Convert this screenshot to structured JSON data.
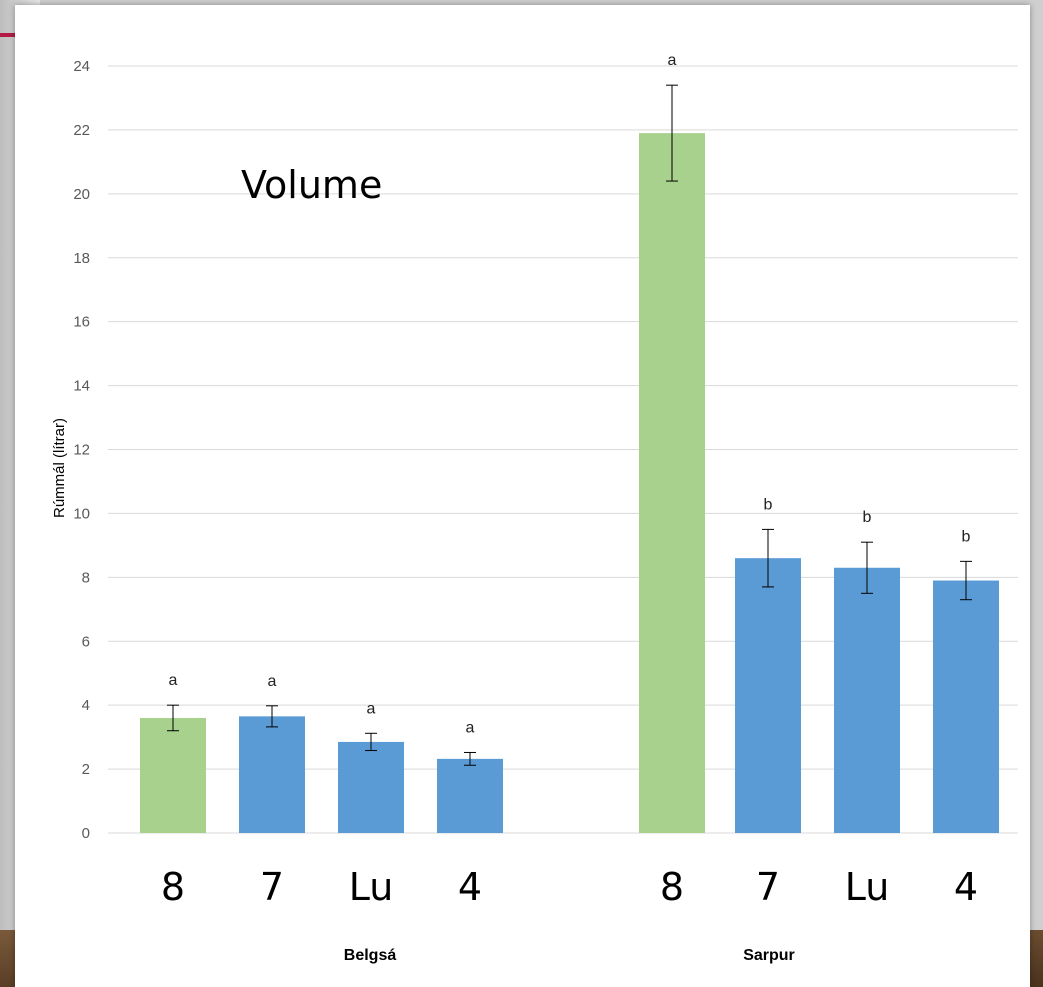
{
  "chart_data": {
    "type": "bar",
    "title": "Volume",
    "ylabel": "Rúmmál (lítrar)",
    "xlabel": "",
    "ylim": [
      0,
      24
    ],
    "yticks": [
      0,
      2,
      4,
      6,
      8,
      10,
      12,
      14,
      16,
      18,
      20,
      22,
      24
    ],
    "grid": true,
    "colors": {
      "green": "#a9d18e",
      "blue": "#5b9bd5",
      "grid": "#d9d9d9"
    },
    "groups": [
      {
        "name": "Belgsá",
        "bars": [
          {
            "label": "8",
            "value": 3.6,
            "error": 0.4,
            "sig": "a",
            "color": "green"
          },
          {
            "label": "7",
            "value": 3.65,
            "error": 0.33,
            "sig": "a",
            "color": "blue"
          },
          {
            "label": "Lu",
            "value": 2.85,
            "error": 0.27,
            "sig": "a",
            "color": "blue"
          },
          {
            "label": "4",
            "value": 2.32,
            "error": 0.2,
            "sig": "a",
            "color": "blue"
          }
        ]
      },
      {
        "name": "Sarpur",
        "bars": [
          {
            "label": "8",
            "value": 21.9,
            "error": 1.5,
            "sig": "a",
            "color": "green"
          },
          {
            "label": "7",
            "value": 8.6,
            "error": 0.9,
            "sig": "b",
            "color": "blue"
          },
          {
            "label": "Lu",
            "value": 8.3,
            "error": 0.8,
            "sig": "b",
            "color": "blue"
          },
          {
            "label": "4",
            "value": 7.9,
            "error": 0.6,
            "sig": "b",
            "color": "blue"
          }
        ]
      }
    ]
  }
}
